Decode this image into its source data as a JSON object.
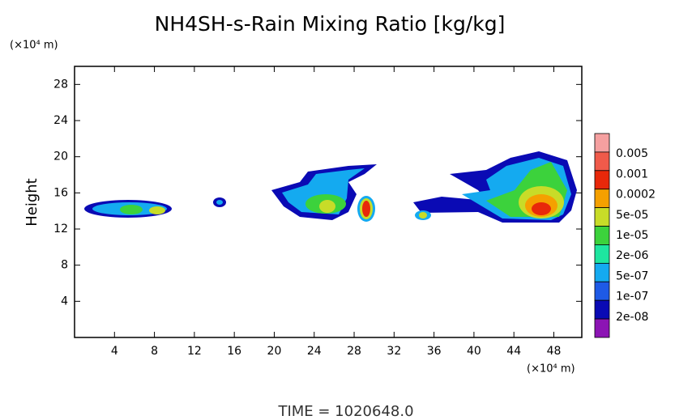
{
  "chart_data": {
    "type": "contour",
    "title": "NH4SH-s-Rain Mixing Ratio [kg/kg]",
    "y_unit_label": "(×10⁴ m)",
    "x_unit_label": "(×10⁴ m)",
    "y_label": "Height",
    "footer": "TIME = 1020648.0",
    "xlim": [
      0,
      50.8
    ],
    "ylim": [
      0,
      30
    ],
    "xticks": [
      4,
      8,
      12,
      16,
      20,
      24,
      28,
      32,
      36,
      40,
      44,
      48
    ],
    "yticks": [
      4,
      8,
      12,
      16,
      20,
      24,
      28
    ],
    "colorbar": {
      "levels": [
        0.005,
        0.001,
        0.0002,
        {
          "value": 5e-05,
          "label": "5e-05"
        },
        {
          "value": 1e-05,
          "label": "1e-05"
        },
        {
          "value": 2e-06,
          "label": "2e-06"
        },
        {
          "value": 5e-07,
          "label": "5e-07"
        },
        {
          "value": 1e-07,
          "label": "1e-07"
        },
        {
          "value": 2e-08,
          "label": "2e-08"
        }
      ],
      "colors": [
        "#f5a0a0",
        "#f05a4a",
        "#e8280a",
        "#f5a000",
        "#c8dc28",
        "#3cd23c",
        "#1ee6a0",
        "#14aaf0",
        "#1e5ae6",
        "#0a0ab4",
        "#8c14b4"
      ]
    }
  }
}
